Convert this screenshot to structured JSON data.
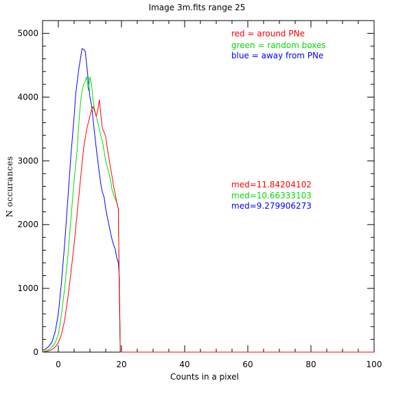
{
  "chart_data": {
    "type": "line",
    "title": "Image 3m.fits   range 25",
    "xlabel": "Counts in a pixel",
    "ylabel": "N  occurances",
    "xlim": [
      -5,
      100
    ],
    "ylim": [
      0,
      5200
    ],
    "xticks": [
      0,
      20,
      40,
      60,
      80,
      100
    ],
    "yticks": [
      0,
      1000,
      2000,
      3000,
      4000,
      5000
    ],
    "grid": false,
    "legend": [
      {
        "label": "red = around PNe",
        "color": "#ff0000"
      },
      {
        "label": "green = random boxes",
        "color": "#00dd00"
      },
      {
        "label": "blue = away from PNe",
        "color": "#0000ff"
      }
    ],
    "annotations": [
      {
        "label": "med=11.84204102",
        "color": "#ff0000"
      },
      {
        "label": "med=10.66333103",
        "color": "#00dd00"
      },
      {
        "label": "med=9.279906273",
        "color": "#0000ff"
      }
    ],
    "series": [
      {
        "color": "#0000ff",
        "x": [
          -5,
          -4,
          -3,
          -2,
          -1,
          0,
          0.5,
          1,
          2,
          3,
          4,
          5,
          5.5,
          6,
          6.5,
          7,
          7.5,
          8,
          8.5,
          9,
          9.5,
          10,
          10.5,
          11,
          11.5,
          12,
          12.5,
          13,
          13.5,
          14,
          14.5,
          15,
          15.5,
          16,
          16.5,
          17,
          17.5,
          18,
          18.5,
          19,
          19.3,
          19.6,
          20,
          21,
          100
        ],
        "y": [
          30,
          50,
          90,
          160,
          320,
          600,
          850,
          1100,
          1700,
          2400,
          3100,
          3700,
          4050,
          4250,
          4450,
          4600,
          4760,
          4750,
          4720,
          4500,
          4250,
          4000,
          3880,
          3650,
          3420,
          3200,
          3000,
          2800,
          2620,
          2500,
          2430,
          2250,
          2120,
          2000,
          1880,
          1770,
          1680,
          1620,
          1480,
          1400,
          1180,
          0,
          0,
          0,
          0
        ]
      },
      {
        "color": "#00dd00",
        "x": [
          -5,
          -4,
          -3,
          -2,
          -1,
          0,
          1,
          2,
          3,
          4,
          5,
          6,
          6.5,
          7,
          7.5,
          8,
          8.5,
          9,
          9.5,
          10,
          10.5,
          11,
          11.5,
          12,
          12.5,
          13,
          13.5,
          14,
          14.5,
          15,
          15.5,
          16,
          16.5,
          17,
          17.5,
          18,
          18.5,
          19,
          19.3,
          19.6,
          20,
          21,
          100
        ],
        "y": [
          10,
          20,
          40,
          80,
          150,
          280,
          600,
          1000,
          1500,
          2100,
          2700,
          3200,
          3600,
          3900,
          4100,
          4200,
          4250,
          4320,
          4100,
          4320,
          4200,
          3950,
          3800,
          3700,
          3600,
          3500,
          3380,
          3300,
          3150,
          3000,
          2900,
          2820,
          2700,
          2550,
          2470,
          2400,
          2350,
          2250,
          900,
          0,
          0,
          0,
          0
        ]
      },
      {
        "color": "#ff0000",
        "x": [
          -5,
          -4,
          -3,
          -2,
          -1,
          0,
          1,
          2,
          3,
          4,
          5,
          6,
          7,
          8,
          8.5,
          9,
          9.5,
          10,
          10.5,
          11,
          11.5,
          12,
          12.5,
          13,
          13.5,
          14,
          14.5,
          15,
          15.5,
          16,
          16.5,
          17,
          17.5,
          18,
          18.5,
          19,
          19.3,
          19.6,
          20,
          21,
          100
        ],
        "y": [
          0,
          10,
          20,
          40,
          80,
          150,
          280,
          500,
          850,
          1250,
          1700,
          2200,
          2700,
          3200,
          3350,
          3500,
          3600,
          3700,
          3800,
          3850,
          3780,
          3700,
          3800,
          3960,
          3700,
          3500,
          3450,
          3380,
          3200,
          3050,
          2900,
          2760,
          2600,
          2480,
          2350,
          2250,
          1000,
          0,
          0,
          0,
          0
        ]
      }
    ]
  }
}
